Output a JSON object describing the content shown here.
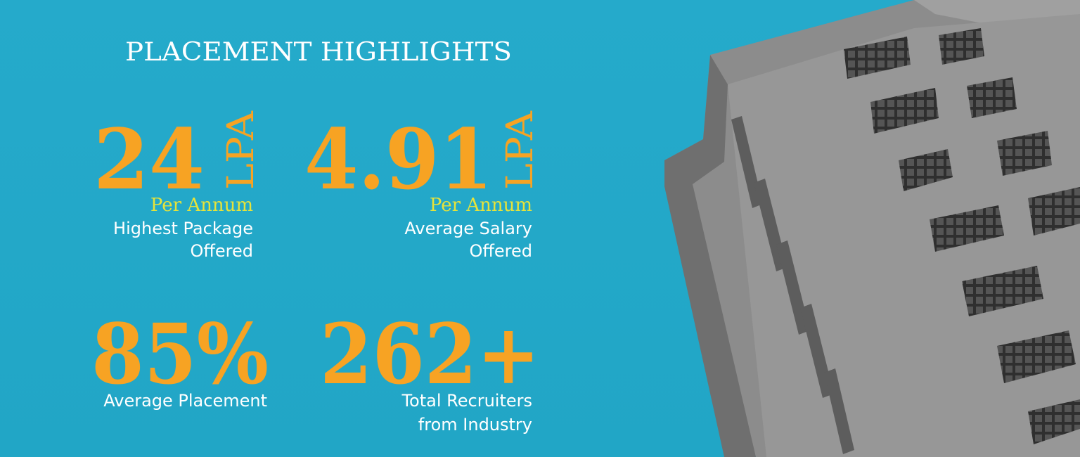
{
  "header": {
    "title": "PLACEMENT HIGHLIGHTS"
  },
  "stats": [
    {
      "value": "24",
      "unit": "LPA",
      "note": "Per Annum",
      "label": [
        "Highest Package",
        "Offered"
      ]
    },
    {
      "value": "4.91",
      "unit": "LPA",
      "note": "Per Annum",
      "label": [
        "Average Salary",
        "Offered"
      ]
    },
    {
      "value": "85%",
      "label": [
        "Average Placement"
      ]
    },
    {
      "value": "262+",
      "label": [
        "Total Recruiters",
        "from Industry"
      ]
    }
  ]
}
